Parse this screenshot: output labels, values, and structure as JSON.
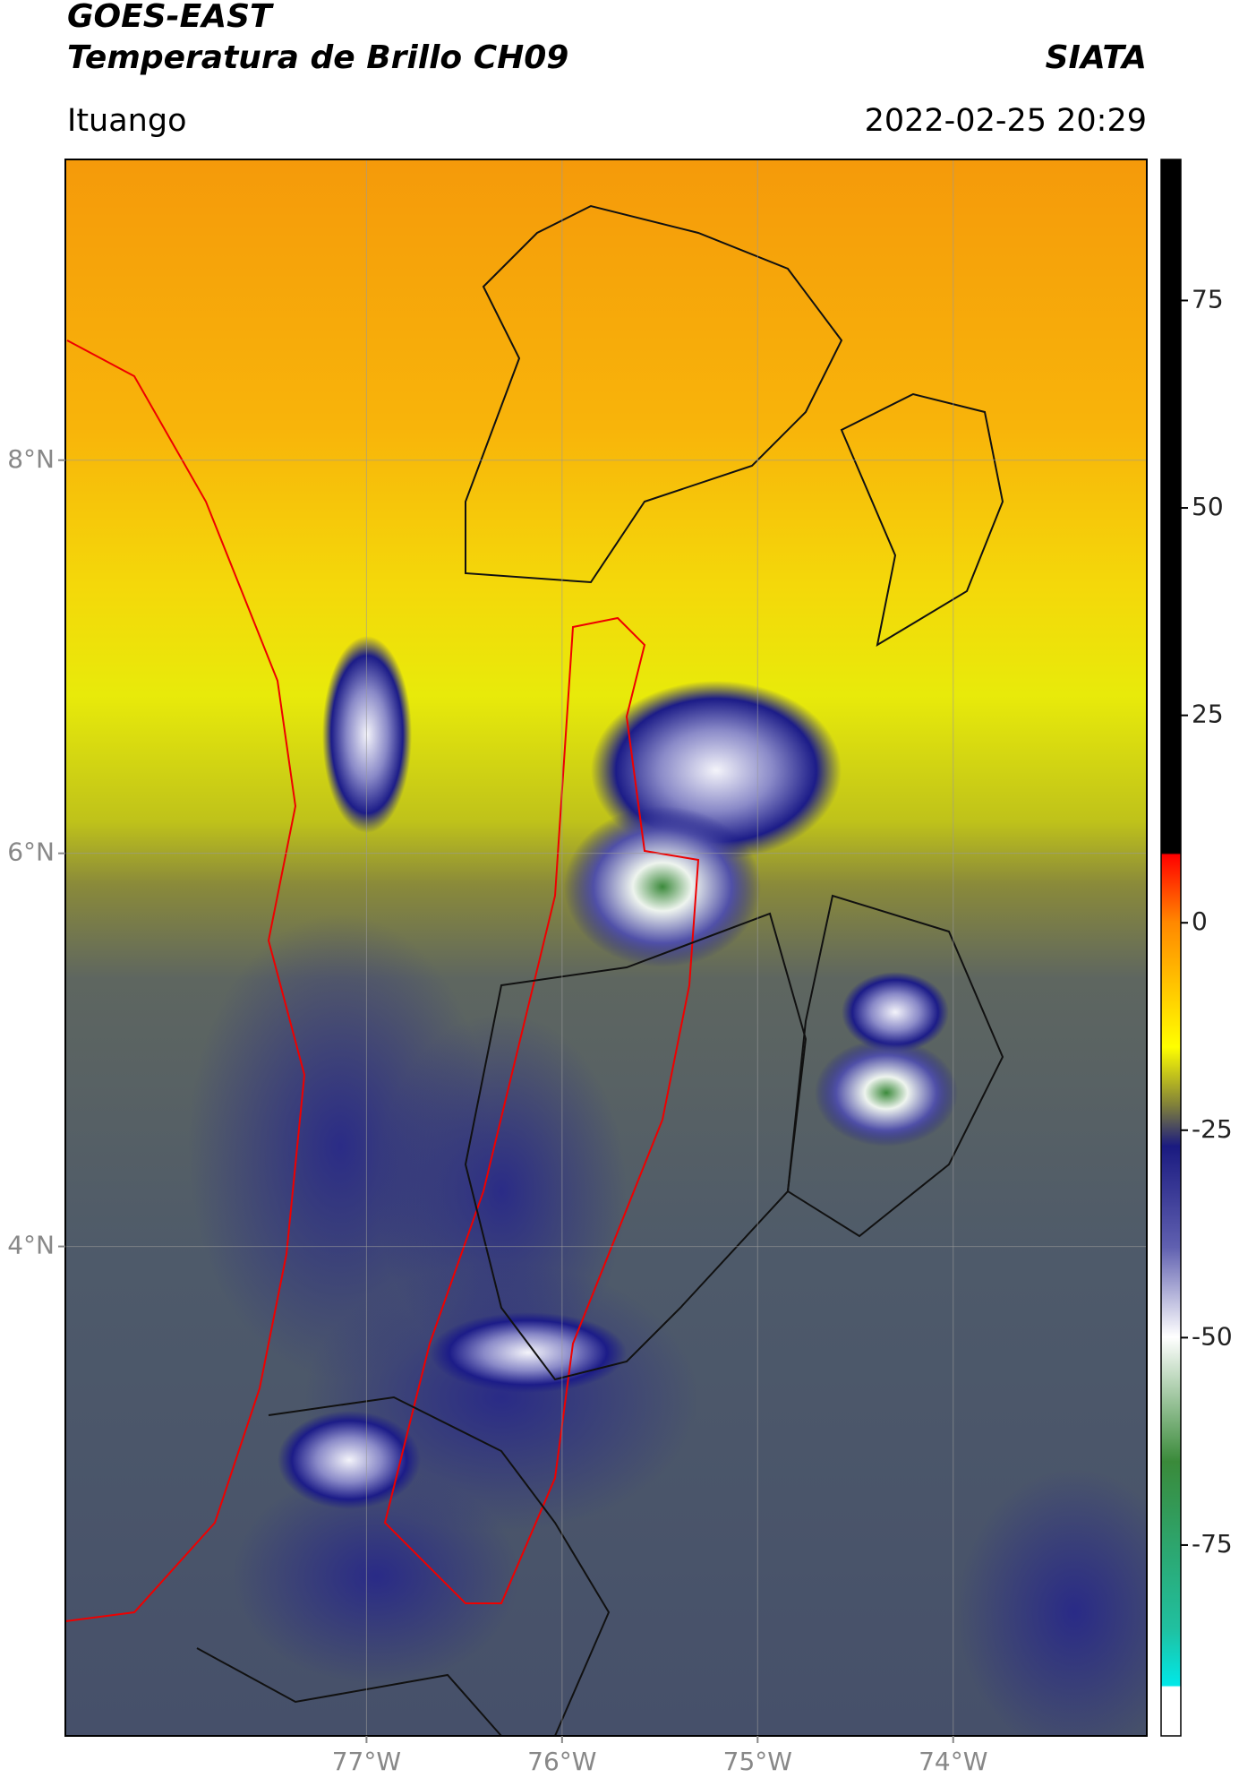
{
  "header": {
    "title": "GOES-EAST",
    "subtitle": "Temperatura de Brillo CH09",
    "org": "SIATA",
    "location": "Ituango",
    "datetime": "2022-02-25 20:29"
  },
  "map": {
    "xlim": [
      -78.54,
      -73.01
    ],
    "ylim": [
      1.51,
      9.53
    ],
    "xticks": [
      {
        "value": -77,
        "label": "77°W"
      },
      {
        "value": -76,
        "label": "76°W"
      },
      {
        "value": -75,
        "label": "75°W"
      },
      {
        "value": -74,
        "label": "74°W"
      }
    ],
    "yticks": [
      {
        "value": 8,
        "label": "8°N"
      },
      {
        "value": 6,
        "label": "6°N"
      },
      {
        "value": 4,
        "label": "4°N"
      }
    ],
    "grid": true
  },
  "colorbar": {
    "lim": [
      -98,
      92
    ],
    "ticks": [
      75,
      50,
      25,
      0,
      -25,
      -50,
      -75
    ]
  }
}
